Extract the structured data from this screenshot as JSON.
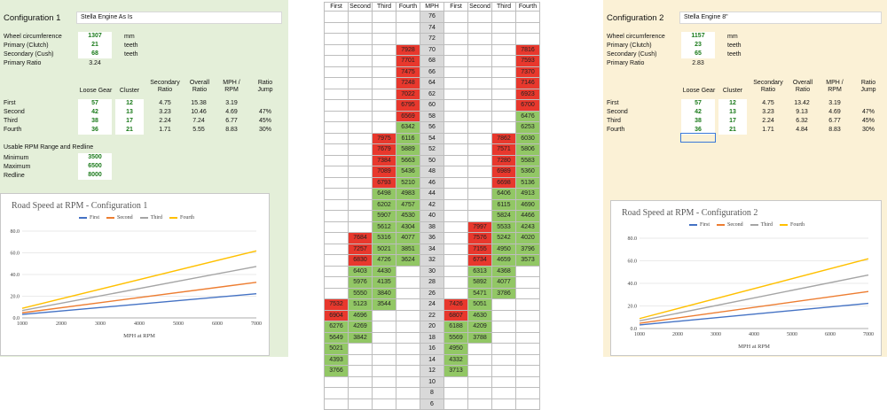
{
  "config1": {
    "title": "Configuration 1",
    "name": "Stella Engine As Is",
    "labels": {
      "wheel": "Wheel circumference",
      "primary": "Primary (Clutch)",
      "secondary": "Secondary (Cush)",
      "ratio": "Primary Ratio"
    },
    "values": {
      "wheel": "1307",
      "primary": "21",
      "secondary": "68",
      "ratio": "3.24"
    },
    "units": {
      "wheel": "mm",
      "primary": "teeth",
      "secondary": "teeth"
    },
    "gear_headers": [
      "Loose Gear",
      "Cluster",
      "Secondary Ratio",
      "Overall Ratio",
      "MPH / RPM",
      "Ratio Jump"
    ],
    "gears": [
      {
        "name": "First",
        "loose": "57",
        "cluster": "12",
        "sec": "4.75",
        "overall": "15.38",
        "mph": "3.19",
        "jump": ""
      },
      {
        "name": "Second",
        "loose": "42",
        "cluster": "13",
        "sec": "3.23",
        "overall": "10.46",
        "mph": "4.69",
        "jump": "47%"
      },
      {
        "name": "Third",
        "loose": "38",
        "cluster": "17",
        "sec": "2.24",
        "overall": "7.24",
        "mph": "6.77",
        "jump": "45%"
      },
      {
        "name": "Fourth",
        "loose": "36",
        "cluster": "21",
        "sec": "1.71",
        "overall": "5.55",
        "mph": "8.83",
        "jump": "30%"
      }
    ],
    "rpm": {
      "title": "Usable RPM Range and Redline",
      "labels": {
        "min": "Minimum",
        "max": "Maximum",
        "red": "Redline"
      },
      "values": {
        "min": "3500",
        "max": "6500",
        "red": "8000"
      }
    }
  },
  "config2": {
    "title": "Configuration 2",
    "name": "Stella Engine 8\"",
    "labels": {
      "wheel": "Wheel circumference",
      "primary": "Primary (Clutch)",
      "secondary": "Secondary (Cush)",
      "ratio": "Primary Ratio"
    },
    "values": {
      "wheel": "1157",
      "primary": "23",
      "secondary": "65",
      "ratio": "2.83"
    },
    "units": {
      "wheel": "mm",
      "primary": "teeth",
      "secondary": "teeth"
    },
    "gear_headers": [
      "Loose Gear",
      "Cluster",
      "Secondary Ratio",
      "Overall Ratio",
      "MPH / RPM",
      "Ratio Jump"
    ],
    "gears": [
      {
        "name": "First",
        "loose": "57",
        "cluster": "12",
        "sec": "4.75",
        "overall": "13.42",
        "mph": "3.19",
        "jump": ""
      },
      {
        "name": "Second",
        "loose": "42",
        "cluster": "13",
        "sec": "3.23",
        "overall": "9.13",
        "mph": "4.69",
        "jump": "47%"
      },
      {
        "name": "Third",
        "loose": "38",
        "cluster": "17",
        "sec": "2.24",
        "overall": "6.32",
        "mph": "6.77",
        "jump": "45%"
      },
      {
        "name": "Fourth",
        "loose": "36",
        "cluster": "21",
        "sec": "1.71",
        "overall": "4.84",
        "mph": "8.83",
        "jump": "30%"
      }
    ]
  },
  "table": {
    "headers": [
      "First",
      "Second",
      "Third",
      "Fourth",
      "MPH",
      "First",
      "Second",
      "Third",
      "Fourth"
    ],
    "rows": [
      {
        "mph": "76",
        "l": [
          "",
          "",
          "",
          ""
        ],
        "r": [
          "",
          "",
          "",
          ""
        ]
      },
      {
        "mph": "74",
        "l": [
          "",
          "",
          "",
          ""
        ],
        "r": [
          "",
          "",
          "",
          ""
        ]
      },
      {
        "mph": "72",
        "l": [
          "",
          "",
          "",
          ""
        ],
        "r": [
          "",
          "",
          "",
          ""
        ]
      },
      {
        "mph": "70",
        "l": [
          "",
          "",
          "",
          "7928"
        ],
        "r": [
          "",
          "",
          "",
          "7816"
        ]
      },
      {
        "mph": "68",
        "l": [
          "",
          "",
          "",
          "7701"
        ],
        "r": [
          "",
          "",
          "",
          "7593"
        ]
      },
      {
        "mph": "66",
        "l": [
          "",
          "",
          "",
          "7475"
        ],
        "r": [
          "",
          "",
          "",
          "7370"
        ]
      },
      {
        "mph": "64",
        "l": [
          "",
          "",
          "",
          "7248"
        ],
        "r": [
          "",
          "",
          "",
          "7146"
        ]
      },
      {
        "mph": "62",
        "l": [
          "",
          "",
          "",
          "7022"
        ],
        "r": [
          "",
          "",
          "",
          "6923"
        ]
      },
      {
        "mph": "60",
        "l": [
          "",
          "",
          "",
          "6795"
        ],
        "r": [
          "",
          "",
          "",
          "6700"
        ]
      },
      {
        "mph": "58",
        "l": [
          "",
          "",
          "",
          "6569"
        ],
        "r": [
          "",
          "",
          "",
          "6476"
        ]
      },
      {
        "mph": "56",
        "l": [
          "",
          "",
          "",
          "6342"
        ],
        "r": [
          "",
          "",
          "",
          "6253"
        ]
      },
      {
        "mph": "54",
        "l": [
          "",
          "",
          "7975",
          "6116"
        ],
        "r": [
          "",
          "",
          "7862",
          "6030"
        ]
      },
      {
        "mph": "52",
        "l": [
          "",
          "",
          "7679",
          "5889"
        ],
        "r": [
          "",
          "",
          "7571",
          "5806"
        ]
      },
      {
        "mph": "50",
        "l": [
          "",
          "",
          "7384",
          "5663"
        ],
        "r": [
          "",
          "",
          "7280",
          "5583"
        ]
      },
      {
        "mph": "48",
        "l": [
          "",
          "",
          "7089",
          "5436"
        ],
        "r": [
          "",
          "",
          "6989",
          "5360"
        ]
      },
      {
        "mph": "46",
        "l": [
          "",
          "",
          "6793",
          "5210"
        ],
        "r": [
          "",
          "",
          "6698",
          "5136"
        ]
      },
      {
        "mph": "44",
        "l": [
          "",
          "",
          "6498",
          "4983"
        ],
        "r": [
          "",
          "",
          "6406",
          "4913"
        ]
      },
      {
        "mph": "42",
        "l": [
          "",
          "",
          "6202",
          "4757"
        ],
        "r": [
          "",
          "",
          "6115",
          "4690"
        ]
      },
      {
        "mph": "40",
        "l": [
          "",
          "",
          "5907",
          "4530"
        ],
        "r": [
          "",
          "",
          "5824",
          "4466"
        ]
      },
      {
        "mph": "38",
        "l": [
          "",
          "",
          "5612",
          "4304"
        ],
        "r": [
          "",
          "7997",
          "5533",
          "4243"
        ]
      },
      {
        "mph": "36",
        "l": [
          "",
          "7684",
          "5316",
          "4077"
        ],
        "r": [
          "",
          "7576",
          "5242",
          "4020"
        ]
      },
      {
        "mph": "34",
        "l": [
          "",
          "7257",
          "5021",
          "3851"
        ],
        "r": [
          "",
          "7155",
          "4950",
          "3796"
        ]
      },
      {
        "mph": "32",
        "l": [
          "",
          "6830",
          "4726",
          "3624"
        ],
        "r": [
          "",
          "6734",
          "4659",
          "3573"
        ]
      },
      {
        "mph": "30",
        "l": [
          "",
          "6403",
          "4430",
          ""
        ],
        "r": [
          "",
          "6313",
          "4368",
          ""
        ]
      },
      {
        "mph": "28",
        "l": [
          "",
          "5976",
          "4135",
          ""
        ],
        "r": [
          "",
          "5892",
          "4077",
          ""
        ]
      },
      {
        "mph": "26",
        "l": [
          "",
          "5550",
          "3840",
          ""
        ],
        "r": [
          "",
          "5471",
          "3786",
          ""
        ]
      },
      {
        "mph": "24",
        "l": [
          "7532",
          "5123",
          "3544",
          ""
        ],
        "r": [
          "7426",
          "5051",
          "",
          ""
        ]
      },
      {
        "mph": "22",
        "l": [
          "6904",
          "4696",
          "",
          ""
        ],
        "r": [
          "6807",
          "4630",
          "",
          ""
        ]
      },
      {
        "mph": "20",
        "l": [
          "6276",
          "4269",
          "",
          ""
        ],
        "r": [
          "6188",
          "4209",
          "",
          ""
        ]
      },
      {
        "mph": "18",
        "l": [
          "5649",
          "3842",
          "",
          ""
        ],
        "r": [
          "5569",
          "3788",
          "",
          ""
        ]
      },
      {
        "mph": "16",
        "l": [
          "5021",
          "",
          "",
          ""
        ],
        "r": [
          "4950",
          "",
          "",
          ""
        ]
      },
      {
        "mph": "14",
        "l": [
          "4393",
          "",
          "",
          ""
        ],
        "r": [
          "4332",
          "",
          "",
          ""
        ]
      },
      {
        "mph": "12",
        "l": [
          "3766",
          "",
          "",
          ""
        ],
        "r": [
          "3713",
          "",
          "",
          ""
        ]
      },
      {
        "mph": "10",
        "l": [
          "",
          "",
          "",
          ""
        ],
        "r": [
          "",
          "",
          "",
          ""
        ]
      },
      {
        "mph": "8",
        "l": [
          "",
          "",
          "",
          ""
        ],
        "r": [
          "",
          "",
          "",
          ""
        ]
      },
      {
        "mph": "6",
        "l": [
          "",
          "",
          "",
          ""
        ],
        "r": [
          "",
          "",
          "",
          ""
        ]
      }
    ],
    "colors": {
      "red": "#e8382d",
      "green": "#92c765",
      "mph": "#d9d9d9"
    }
  },
  "chart_data": [
    {
      "type": "line",
      "title": "Road Speed at RPM - Configuration 1",
      "xlabel": "MPH at RPM",
      "ylabel": "",
      "x": [
        1000,
        7000
      ],
      "xticks": [
        "1000",
        "2000",
        "3000",
        "4000",
        "5000",
        "6000",
        "7000"
      ],
      "yticks": [
        "0.0",
        "20.0",
        "40.0",
        "60.0",
        "80.0"
      ],
      "xlim": [
        1000,
        7000
      ],
      "ylim": [
        0,
        80
      ],
      "legend": "top",
      "series": [
        {
          "name": "First",
          "color": "#4472c4",
          "values": [
            3.19,
            22.3
          ]
        },
        {
          "name": "Second",
          "color": "#ed7d31",
          "values": [
            4.69,
            32.8
          ]
        },
        {
          "name": "Third",
          "color": "#a5a5a5",
          "values": [
            6.77,
            47.4
          ]
        },
        {
          "name": "Fourth",
          "color": "#ffc000",
          "values": [
            8.83,
            61.8
          ]
        }
      ]
    },
    {
      "type": "line",
      "title": "Road Speed at RPM - Configuration 2",
      "xlabel": "MPH at RPM",
      "ylabel": "",
      "x": [
        1000,
        7000
      ],
      "xticks": [
        "1000",
        "2000",
        "3000",
        "4000",
        "5000",
        "6000",
        "7000"
      ],
      "yticks": [
        "0.0",
        "20.0",
        "40.0",
        "60.0",
        "80.0"
      ],
      "xlim": [
        1000,
        7000
      ],
      "ylim": [
        0,
        80
      ],
      "legend": "top",
      "series": [
        {
          "name": "First",
          "color": "#4472c4",
          "values": [
            3.19,
            22.3
          ]
        },
        {
          "name": "Second",
          "color": "#ed7d31",
          "values": [
            4.69,
            32.8
          ]
        },
        {
          "name": "Third",
          "color": "#a5a5a5",
          "values": [
            6.77,
            47.4
          ]
        },
        {
          "name": "Fourth",
          "color": "#ffc000",
          "values": [
            8.83,
            61.8
          ]
        }
      ]
    }
  ]
}
